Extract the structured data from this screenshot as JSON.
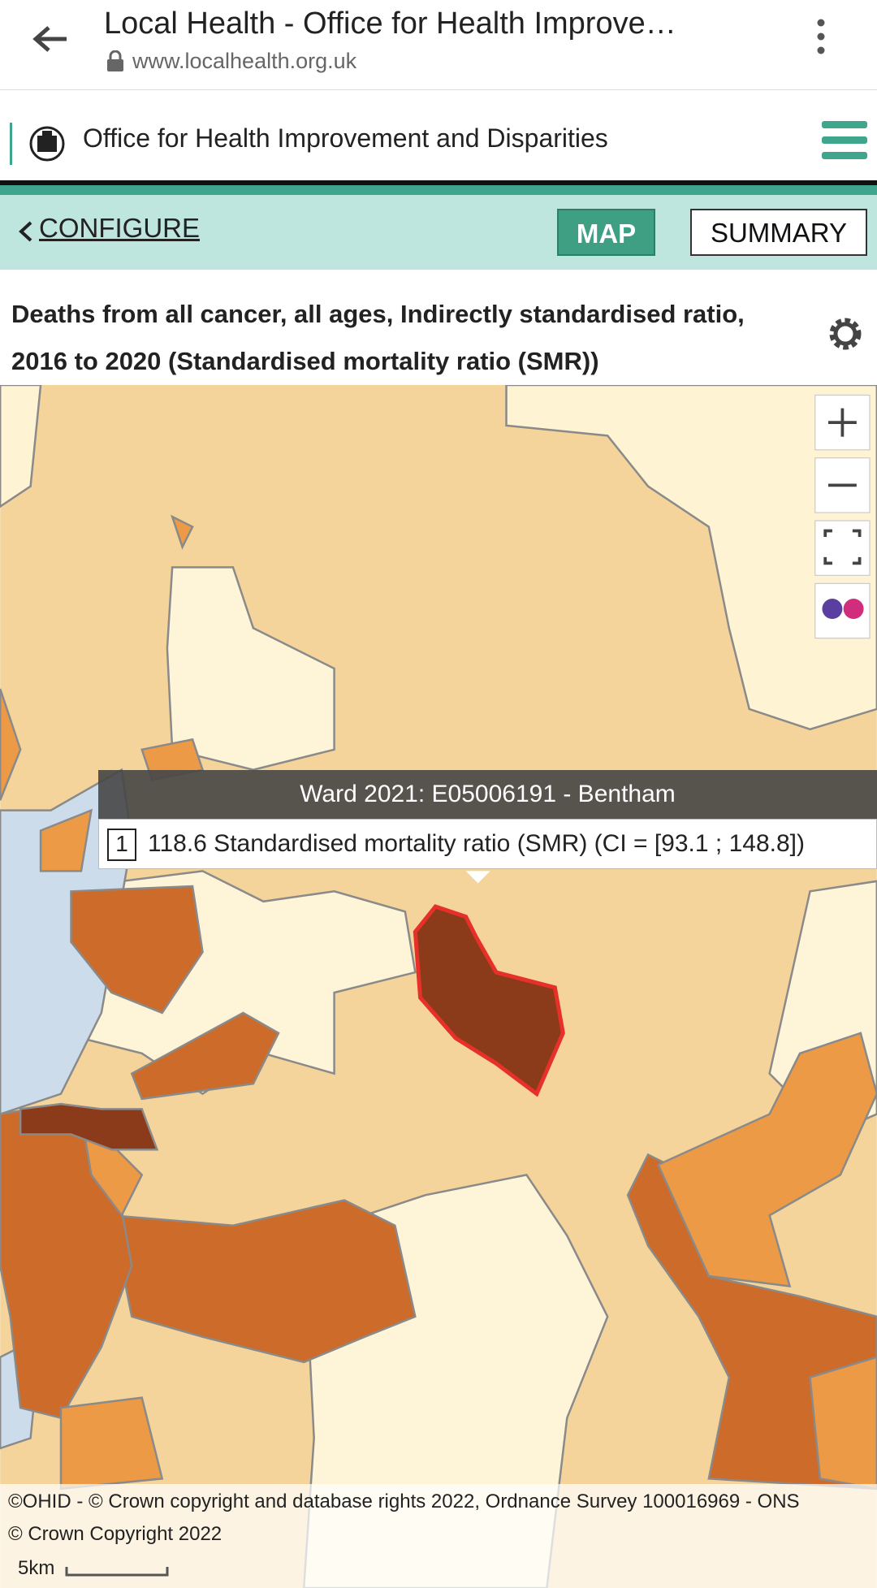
{
  "browser": {
    "title": "Local Health - Office for Health Improve…",
    "url": "www.localhealth.org.uk"
  },
  "header": {
    "org": "Office for Health Improvement and Disparities"
  },
  "toolbar": {
    "configure": "CONFIGURE",
    "tabs": [
      "MAP",
      "SUMMARY"
    ]
  },
  "indicator": {
    "title": "Deaths from all cancer, all ages, Indirectly standardised ratio, 2016 to 2020 (Standardised mortality ratio (SMR))"
  },
  "map": {
    "tooltip": {
      "heading": "Ward 2021: E05006191 - Bentham",
      "rank": "1",
      "text": "118.6 Standardised mortality ratio (SMR) (CI = [93.1 ; 148.8])"
    },
    "attribution": [
      "©OHID - © Crown copyright and database rights 2022, Ordnance Survey 100016969 - ONS",
      "© Crown Copyright 2022"
    ],
    "scale": "5km"
  }
}
